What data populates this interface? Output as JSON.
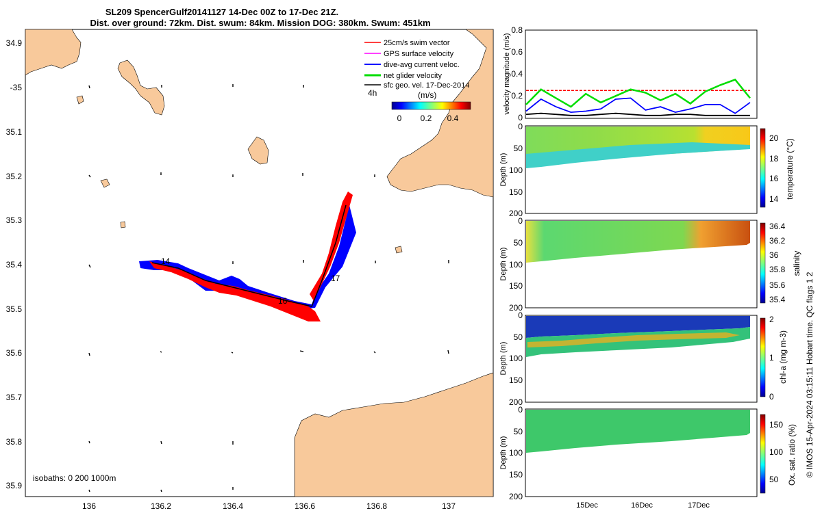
{
  "title": {
    "line1": "SL209 SpencerGulf20141127 14-Dec 00Z to 17-Dec 21Z.",
    "line2": "Dist. over ground: 72km. Dist. swum: 84km. Mission DOG: 380km. Swum: 451km"
  },
  "map": {
    "lon_ticks": [
      "136",
      "136.2",
      "136.4",
      "136.6",
      "136.8",
      "137"
    ],
    "lat_ticks": [
      "34.9",
      "-35",
      "35.1",
      "35.2",
      "35.3",
      "35.4",
      "35.5",
      "35.6",
      "35.7",
      "35.8",
      "35.9"
    ],
    "legend": [
      {
        "label": "25cm/s swim vector",
        "color": "#ff0000"
      },
      {
        "label": "GPS surface velocity",
        "color": "#ff00ff"
      },
      {
        "label": "dive-avg current veloc.",
        "color": "#0000ff"
      },
      {
        "label": "net glider velocity",
        "color": "#00dd00"
      },
      {
        "label": "sfc geo. vel. 17-Dec-2014",
        "color": "#000000"
      }
    ],
    "scale_label": "4h",
    "colorbar_unit": "(m/s)",
    "colorbar_ticks": [
      "0",
      "0.2",
      "0.4"
    ],
    "isobaths_text": "isobaths: 0   200  1000m",
    "track_labels": [
      "14",
      "16",
      "17"
    ],
    "land_color": "#f8c99b"
  },
  "chart_data": [
    {
      "type": "line",
      "ylabel": "velocity magnitude (m/s)",
      "ylim": [
        0,
        0.8
      ],
      "yticks": [
        "0",
        "0.2",
        "0.4",
        "0.6",
        "0.8"
      ],
      "series": [
        {
          "color": "#ff0000",
          "values": [
            0.25,
            0.25,
            0.25,
            0.25,
            0.25,
            0.25,
            0.25,
            0.25,
            0.25
          ]
        },
        {
          "color": "#00dd00",
          "values": [
            0.12,
            0.26,
            0.18,
            0.1,
            0.22,
            0.14,
            0.2,
            0.26,
            0.23,
            0.16,
            0.22,
            0.13,
            0.24,
            0.3,
            0.35,
            0.18
          ]
        },
        {
          "color": "#0000ff",
          "values": [
            0.06,
            0.17,
            0.1,
            0.05,
            0.06,
            0.08,
            0.17,
            0.18,
            0.07,
            0.1,
            0.05,
            0.08,
            0.12,
            0.12,
            0.04,
            0.14
          ]
        },
        {
          "color": "#000000",
          "values": [
            0.03,
            0.04,
            0.03,
            0.02,
            0.02,
            0.03,
            0.04,
            0.03,
            0.02,
            0.02,
            0.03,
            0.03,
            0.02,
            0.02,
            0.02,
            0.02
          ]
        }
      ]
    },
    {
      "type": "heatmap",
      "ylabel": "Depth (m)",
      "clabel": "temperature (°C)",
      "ylim": [
        0,
        200
      ],
      "yticks": [
        "0",
        "50",
        "100",
        "150",
        "200"
      ],
      "cticks": [
        "14",
        "16",
        "18",
        "20"
      ]
    },
    {
      "type": "heatmap",
      "ylabel": "Depth (m)",
      "clabel": "salinity",
      "ylim": [
        0,
        200
      ],
      "yticks": [
        "0",
        "50",
        "100",
        "150",
        "200"
      ],
      "cticks": [
        "35.4",
        "35.6",
        "35.8",
        "36",
        "36.2",
        "36.4"
      ]
    },
    {
      "type": "heatmap",
      "ylabel": "Depth (m)",
      "clabel": "chl-a (mg m-3)",
      "ylim": [
        0,
        200
      ],
      "yticks": [
        "0",
        "50",
        "100",
        "150",
        "200"
      ],
      "cticks": [
        "0",
        "1",
        "2"
      ]
    },
    {
      "type": "heatmap",
      "ylabel": "Depth (m)",
      "clabel": "Ox. sat. ratio (%)",
      "ylim": [
        0,
        200
      ],
      "yticks": [
        "0",
        "50",
        "100",
        "150",
        "200"
      ],
      "cticks": [
        "50",
        "100",
        "150"
      ],
      "xticks": [
        "15Dec",
        "16Dec",
        "17Dec"
      ]
    }
  ],
  "footer_credit": "© IMOS 15-Apr-2024 03:15:11 Hobart time. QC flags 1  2"
}
